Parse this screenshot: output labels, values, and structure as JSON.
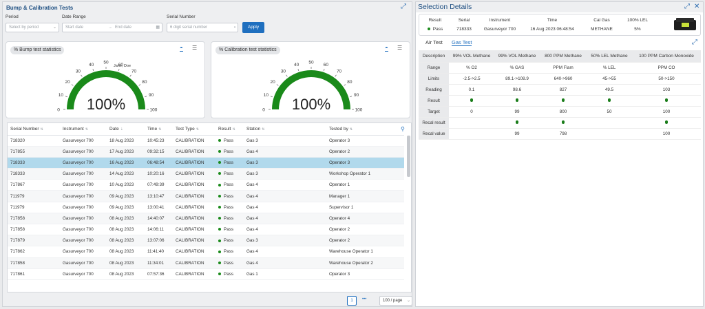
{
  "left_panel": {
    "title": "Bump & Calibration Tests",
    "filters": {
      "period_label": "Period",
      "period_placeholder": "Select by period",
      "date_range_label": "Date Range",
      "start_placeholder": "Start date",
      "end_placeholder": "End date",
      "serial_label": "Serial Number",
      "serial_placeholder": "6 digit serial number",
      "apply_label": "Apply"
    },
    "bump_card": {
      "title": "% Bump test statistics",
      "value": "100%",
      "percent": 100,
      "ticks": [
        "0",
        "10",
        "20",
        "30",
        "40",
        "50",
        "60",
        "70",
        "80",
        "90",
        "100"
      ],
      "marker_label": "Jane, Doe"
    },
    "cal_card": {
      "title": "% Calibration test statistics",
      "value": "100%",
      "percent": 100,
      "ticks": [
        "0",
        "10",
        "20",
        "30",
        "40",
        "50",
        "60",
        "70",
        "80",
        "90",
        "100"
      ]
    },
    "grid": {
      "columns": [
        "Serial Number",
        "Instrument",
        "Date",
        "Time",
        "Test Type",
        "Result",
        "Station",
        "Tested by"
      ],
      "rows": [
        [
          "718320",
          "Gasurveyor 700",
          "18 Aug 2023",
          "10:45:23",
          "CALIBRATION",
          "Pass",
          "Gas 3",
          "Operator 3"
        ],
        [
          "717855",
          "Gasurveyor 700",
          "17 Aug 2023",
          "09:32:15",
          "CALIBRATION",
          "Pass",
          "Gas 4",
          "Operator 2"
        ],
        [
          "718333",
          "Gasurveyor 700",
          "16 Aug 2023",
          "06:48:54",
          "CALIBRATION",
          "Pass",
          "Gas 3",
          "Operator 3"
        ],
        [
          "718333",
          "Gasurveyor 700",
          "14 Aug 2023",
          "10:20:16",
          "CALIBRATION",
          "Pass",
          "Gas 3",
          "Workshop Operator 1"
        ],
        [
          "717867",
          "Gasurveyor 700",
          "10 Aug 2023",
          "07:49:39",
          "CALIBRATION",
          "Pass",
          "Gas 4",
          "Operator 1"
        ],
        [
          "711979",
          "Gasurveyor 700",
          "09 Aug 2023",
          "13:10:47",
          "CALIBRATION",
          "Pass",
          "Gas 4",
          "Manager 1"
        ],
        [
          "711979",
          "Gasurveyor 700",
          "09 Aug 2023",
          "13:00:41",
          "CALIBRATION",
          "Pass",
          "Gas 4",
          "Supervisor 1"
        ],
        [
          "717858",
          "Gasurveyor 700",
          "08 Aug 2023",
          "14:40:07",
          "CALIBRATION",
          "Pass",
          "Gas 4",
          "Operator 4"
        ],
        [
          "717858",
          "Gasurveyor 700",
          "08 Aug 2023",
          "14:06:11",
          "CALIBRATION",
          "Pass",
          "Gas 4",
          "Operator 2"
        ],
        [
          "717879",
          "Gasurveyor 700",
          "08 Aug 2023",
          "13:07:06",
          "CALIBRATION",
          "Pass",
          "Gas 3",
          "Operator 2"
        ],
        [
          "717862",
          "Gasurveyor 700",
          "08 Aug 2023",
          "11:41:40",
          "CALIBRATION",
          "Pass",
          "Gas 4",
          "Warehouse Operator 1"
        ],
        [
          "717858",
          "Gasurveyor 700",
          "08 Aug 2023",
          "11:34:01",
          "CALIBRATION",
          "Pass",
          "Gas 4",
          "Warehouse Operator 2"
        ],
        [
          "717861",
          "Gasurveyor 700",
          "08 Aug 2023",
          "07:57:36",
          "CALIBRATION",
          "Pass",
          "Gas 1",
          "Operator 3"
        ]
      ],
      "selected_row": 2
    },
    "pagination": {
      "page": "1",
      "more": "•••",
      "page_size": "100 / page"
    }
  },
  "right_panel": {
    "title": "Selection Details",
    "summary": {
      "headers": [
        "Result",
        "Serial",
        "Instrument",
        "Time",
        "Cal Gas",
        "100% LEL"
      ],
      "values": [
        "Pass",
        "718333",
        "Gasurveyor 700",
        "16 Aug 2023 06:48:54",
        "METHANE",
        "5%"
      ]
    },
    "tabs": [
      "Air Test",
      "Gas Test"
    ],
    "active_tab": 1,
    "gas_table": {
      "header": [
        "Description",
        "99% VOL Methane",
        "99% VOL Methane",
        "800 PPM Methane",
        "50% LEL Methane",
        "100 PPM Carbon Monoxide"
      ],
      "rows": [
        {
          "label": "Range",
          "cells": [
            "% O2",
            "% GAS",
            "PPM Flam",
            "% LEL",
            "PPM CO"
          ]
        },
        {
          "label": "Limits",
          "cells": [
            "-2.5->2.5",
            "89.1->108.9",
            "640->960",
            "45->55",
            "50->150"
          ]
        },
        {
          "label": "Reading",
          "cells": [
            "0.1",
            "98.6",
            "827",
            "49.5",
            "103"
          ]
        },
        {
          "label": "Result",
          "cells": [
            "dot",
            "dot",
            "dot",
            "dot",
            "dot"
          ]
        },
        {
          "label": "Target",
          "cells": [
            "0",
            "99",
            "800",
            "50",
            "100"
          ]
        },
        {
          "label": "Recal result",
          "cells": [
            "",
            "dot",
            "dot",
            "",
            "dot"
          ]
        },
        {
          "label": "Recal value",
          "cells": [
            "",
            "99",
            "798",
            "",
            "100"
          ]
        }
      ]
    }
  },
  "colors": {
    "accent": "#1f6fbf",
    "gauge": "#1a8a1a",
    "selected": "#b1d9ec",
    "title": "#1e4f82"
  }
}
